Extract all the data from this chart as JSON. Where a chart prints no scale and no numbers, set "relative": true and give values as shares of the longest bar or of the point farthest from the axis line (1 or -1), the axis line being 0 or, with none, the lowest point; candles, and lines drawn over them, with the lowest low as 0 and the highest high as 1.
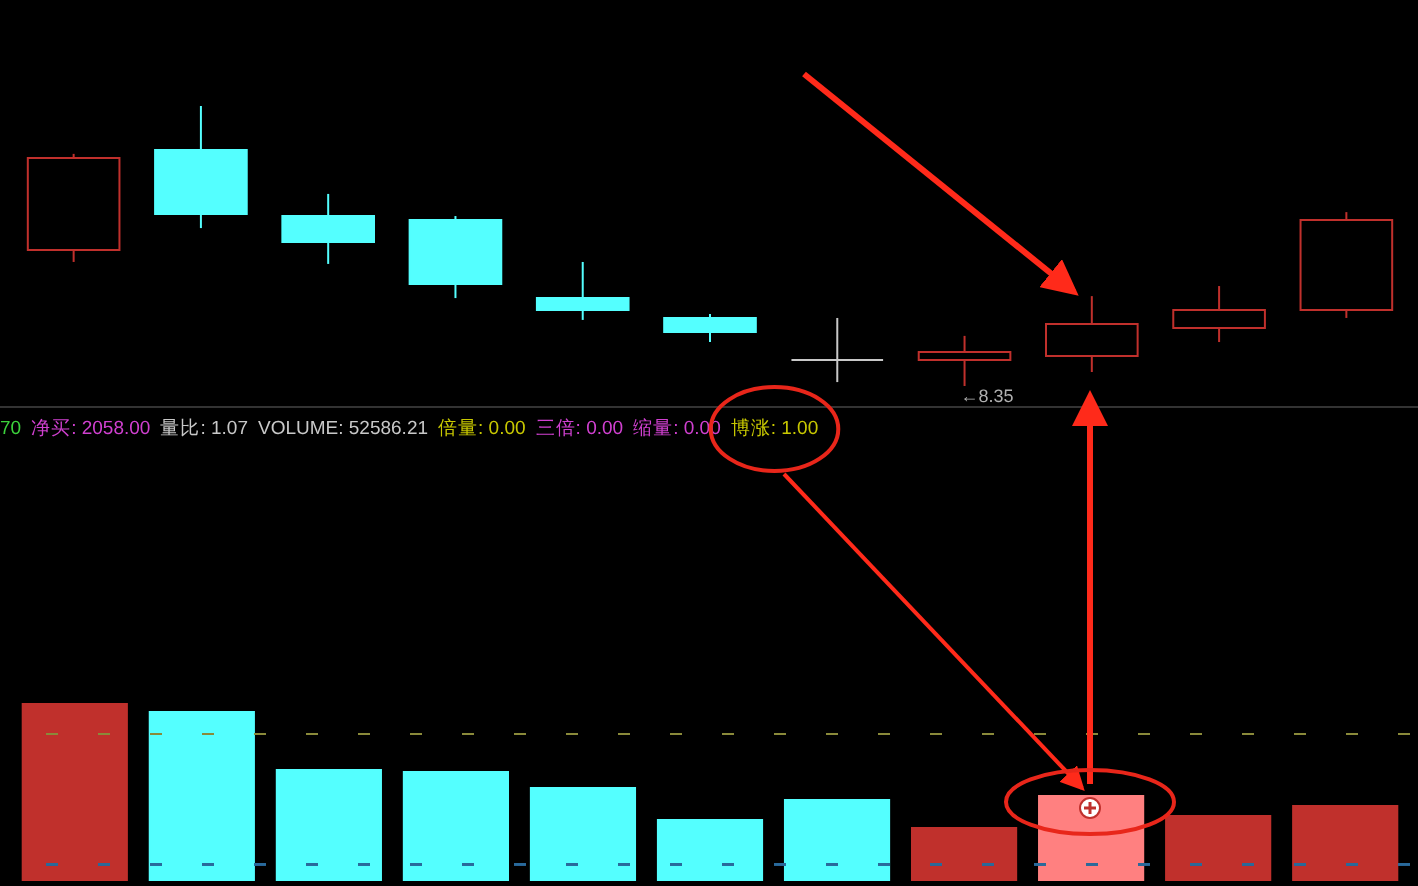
{
  "chart_data": [
    {
      "type": "candlestick",
      "relative": true,
      "categories": [
        null,
        null,
        null,
        null,
        null,
        null,
        null,
        null,
        null,
        null,
        null
      ],
      "ohlc": [
        [
          0.486,
          0.829,
          0.443,
          0.814
        ],
        [
          0.843,
          1,
          0.564,
          0.614
        ],
        [
          0.607,
          0.686,
          0.436,
          0.514
        ],
        [
          0.593,
          0.607,
          0.314,
          0.364
        ],
        [
          0.314,
          0.443,
          0.236,
          0.271
        ],
        [
          0.243,
          0.257,
          0.157,
          0.193
        ],
        [
          0.093,
          0.243,
          0.014,
          0.093
        ],
        [
          0.093,
          0.179,
          0,
          0.121
        ],
        [
          0.107,
          0.321,
          0.05,
          0.221
        ],
        [
          0.207,
          0.357,
          0.157,
          0.271
        ],
        [
          0.271,
          0.621,
          0.243,
          0.593
        ]
      ],
      "colors": [
        "#c0302c",
        "#54ffff",
        "#54ffff",
        "#54ffff",
        "#54ffff",
        "#54ffff",
        "#c8c8c8",
        "#c0302c",
        "#c0302c",
        "#c0302c",
        "#c0302c"
      ],
      "annotations": [
        "←8.35"
      ]
    },
    {
      "type": "bar",
      "relative": true,
      "categories": [
        null,
        null,
        null,
        null,
        null,
        null,
        null,
        null,
        null,
        null,
        null
      ],
      "values": [
        1,
        0.955,
        0.625,
        0.614,
        0.523,
        0.341,
        0.455,
        0.295,
        0.477,
        0.364,
        0.42
      ],
      "colors": [
        "#c0302c",
        "#54ffff",
        "#54ffff",
        "#54ffff",
        "#54ffff",
        "#54ffff",
        "#54ffff",
        "#c0302c",
        "#ff8080",
        "#c0302c",
        "#c0302c"
      ],
      "ref_lines": [
        {
          "axis": "y",
          "value": 0.83,
          "color": "#8a8a3a",
          "line_style": "dashed"
        },
        {
          "axis": "y",
          "value": 0.09,
          "color": "#2a6a9a",
          "line_style": "dashed"
        }
      ],
      "annotations": [
        "70",
        "净买: 2058.00",
        "量比: 1.07",
        "VOLUME: 52586.21",
        "倍量: 0.00",
        "三倍: 0.00",
        "缩量: 0.00",
        "博涨: 1.00"
      ]
    }
  ]
}
